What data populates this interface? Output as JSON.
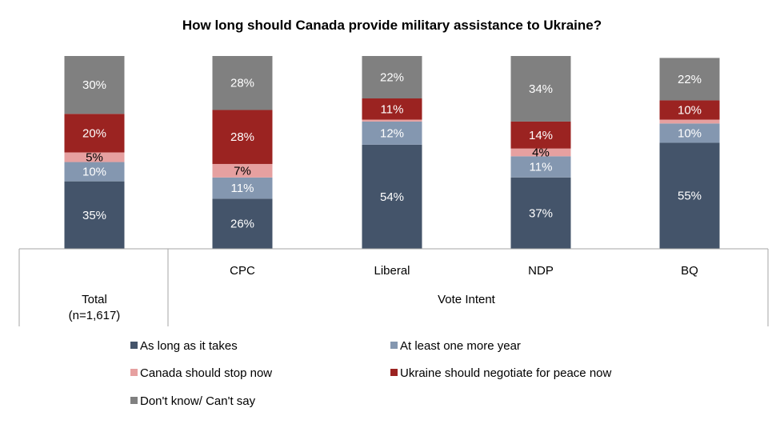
{
  "chart_data": {
    "type": "bar",
    "stacked": true,
    "title": "How long should Canada provide military assistance to Ukraine?",
    "categories": [
      "Total",
      "CPC",
      "Liberal",
      "NDP",
      "BQ"
    ],
    "category_labels": [
      [
        "Total",
        "(n=1,617)"
      ],
      [
        "CPC"
      ],
      [
        "Liberal"
      ],
      [
        "NDP"
      ],
      [
        "BQ"
      ]
    ],
    "group_label": "Vote Intent",
    "series": [
      {
        "name": "As long as it takes",
        "color": "#44546a",
        "label_color": "#ffffff",
        "values": [
          35,
          26,
          54,
          37,
          55
        ],
        "labels": [
          "35%",
          "26%",
          "54%",
          "37%",
          "55%"
        ]
      },
      {
        "name": "At least one more year",
        "color": "#8497b0",
        "label_color": "#ffffff",
        "values": [
          10,
          11,
          12,
          11,
          10
        ],
        "labels": [
          "10%",
          "11%",
          "12%",
          "11%",
          "10%"
        ]
      },
      {
        "name": "Canada should stop now",
        "color": "#e6a0a0",
        "label_color": "#000000",
        "values": [
          5,
          7,
          1,
          4,
          2
        ],
        "labels": [
          "5%",
          "7%",
          "",
          "4%",
          ""
        ]
      },
      {
        "name": "Ukraine should negotiate for peace now",
        "color": "#9b2321",
        "label_color": "#ffffff",
        "values": [
          20,
          28,
          11,
          14,
          10
        ],
        "labels": [
          "20%",
          "28%",
          "11%",
          "14%",
          "10%"
        ]
      },
      {
        "name": "Don't know/ Can't say",
        "color": "#808080",
        "label_color": "#ffffff",
        "values": [
          30,
          28,
          22,
          34,
          22
        ],
        "labels": [
          "30%",
          "28%",
          "22%",
          "34%",
          "22%"
        ]
      }
    ],
    "legend_order": [
      0,
      1,
      2,
      3,
      4
    ],
    "legend_position": "bottom",
    "ylim": [
      0,
      100
    ],
    "grid": false
  }
}
